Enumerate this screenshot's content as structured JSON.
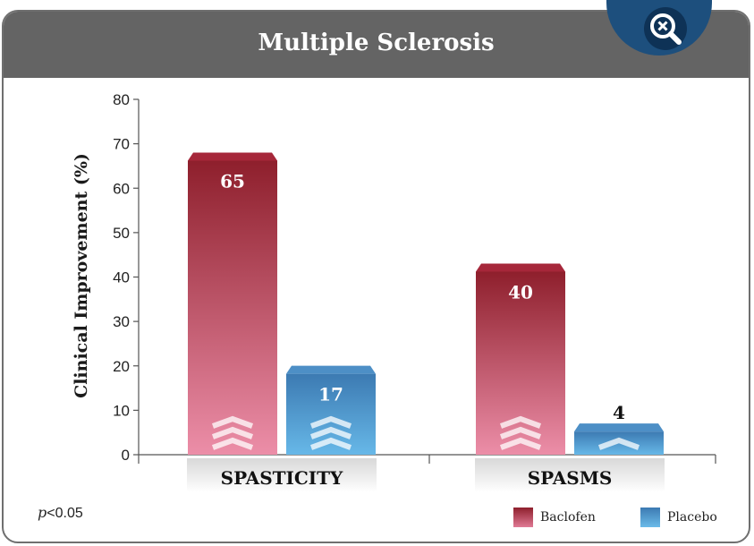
{
  "header": {
    "title": "Multiple Sclerosis",
    "zoom_icon": "zoom-out-magnifier-icon"
  },
  "footnote": {
    "p_symbol": "p",
    "p_value": "<0.05"
  },
  "colors": {
    "baclofen": "#b8334a",
    "placebo": "#3f86c2",
    "header": "#646464"
  },
  "chart_data": {
    "type": "bar",
    "title": "",
    "ylabel": "Clinical Improvement (%)",
    "xlabel": "",
    "ylim": [
      0,
      80
    ],
    "yticks": [
      0,
      10,
      20,
      30,
      40,
      50,
      60,
      70,
      80
    ],
    "categories": [
      "SPASTICITY",
      "SPASMS"
    ],
    "series": [
      {
        "name": "Baclofen",
        "values": [
          65,
          40
        ]
      },
      {
        "name": "Placebo",
        "values": [
          17,
          4
        ]
      }
    ],
    "legend_position": "bottom-right",
    "grid": false
  }
}
